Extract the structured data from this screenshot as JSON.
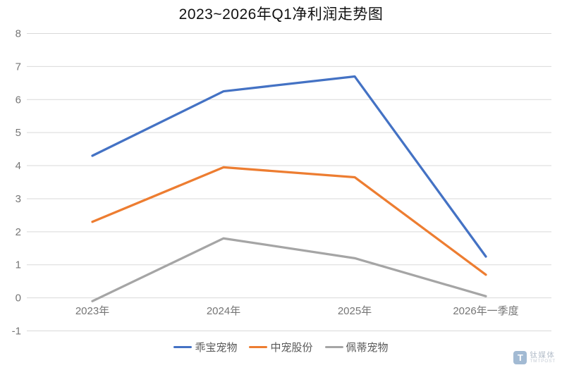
{
  "title": "2023~2026年Q1净利润走势图",
  "chart_data": {
    "type": "line",
    "categories": [
      "2023年",
      "2024年",
      "2025年",
      "2026年一季度"
    ],
    "series": [
      {
        "name": "乖宝宠物",
        "color": "#4472C4",
        "values": [
          4.3,
          6.25,
          6.7,
          1.25
        ]
      },
      {
        "name": "中宠股份",
        "color": "#ED7D31",
        "values": [
          2.3,
          3.95,
          3.65,
          0.7
        ]
      },
      {
        "name": "佩蒂宠物",
        "color": "#A5A5A5",
        "values": [
          -0.1,
          1.8,
          1.2,
          0.05
        ]
      }
    ],
    "ylim": [
      -1,
      8
    ],
    "y_ticks": [
      8,
      7,
      6,
      5,
      4,
      3,
      2,
      1,
      0,
      -1
    ],
    "grid": true,
    "legend_position": "bottom",
    "gridline_color": "#D9D9D9",
    "tick_label_color": "#757575",
    "legend_text_color": "#595959"
  },
  "watermark": {
    "logo_letter": "T",
    "brand_cn": "钛媒体",
    "brand_en": "TMTPOST"
  }
}
